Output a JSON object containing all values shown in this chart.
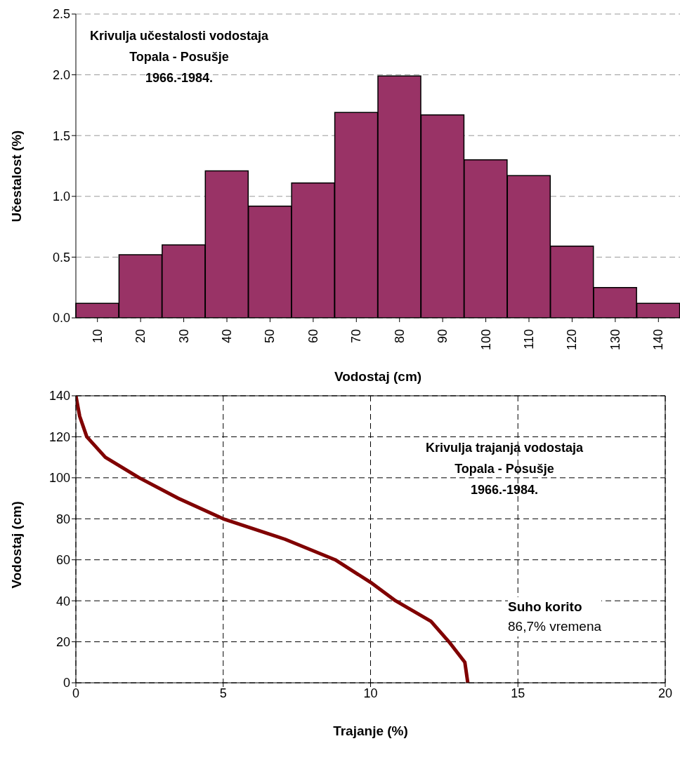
{
  "chart_data": [
    {
      "type": "bar",
      "title": "Krivulja učestalosti vodostaja\nTopala - Posušje\n1966.-1984.",
      "xlabel": "Vodostaj (cm)",
      "ylabel": "Učestalost (%)",
      "categories": [
        "10",
        "20",
        "30",
        "40",
        "50",
        "60",
        "70",
        "80",
        "90",
        "100",
        "110",
        "120",
        "130",
        "140"
      ],
      "values": [
        0.12,
        0.52,
        0.6,
        1.21,
        0.92,
        1.11,
        1.69,
        1.99,
        1.67,
        1.3,
        1.17,
        0.59,
        0.25,
        0.12
      ],
      "color": "#993366",
      "ylim": [
        0,
        2.5
      ],
      "yticks": [
        {
          "value": 0,
          "label": "0.0"
        },
        {
          "value": 0.5,
          "label": "0.5"
        },
        {
          "value": 1,
          "label": "1.0"
        },
        {
          "value": 1.5,
          "label": "1.5"
        },
        {
          "value": 2,
          "label": "2.0"
        },
        {
          "value": 2.5,
          "label": "2.5"
        }
      ],
      "grid": "y"
    },
    {
      "type": "line",
      "title": "Krivulja trajanja vodostaja\nTopala - Posušje\n1966.-1984.",
      "xlabel": "Trajanje (%)",
      "ylabel": "Vodostaj (cm)",
      "x": [
        0,
        0.13,
        0.37,
        1,
        2.15,
        3.47,
        5,
        7.1,
        8.8,
        10,
        10.85,
        12.05,
        12.66,
        13.2,
        13.3
      ],
      "values": [
        140,
        130,
        120,
        110,
        100,
        90,
        80,
        70,
        60,
        49,
        40,
        30,
        20,
        10,
        0
      ],
      "color": "#800000",
      "xlim": [
        0,
        20
      ],
      "xticks": [
        0,
        5,
        10,
        15,
        20
      ],
      "ylim": [
        0,
        140
      ],
      "yticks": [
        0,
        20,
        40,
        60,
        80,
        100,
        120,
        140
      ],
      "grid": true,
      "marker": "none",
      "line_style": "solid",
      "annotations": [
        "Suho korito",
        "86,7% vremena"
      ]
    }
  ]
}
